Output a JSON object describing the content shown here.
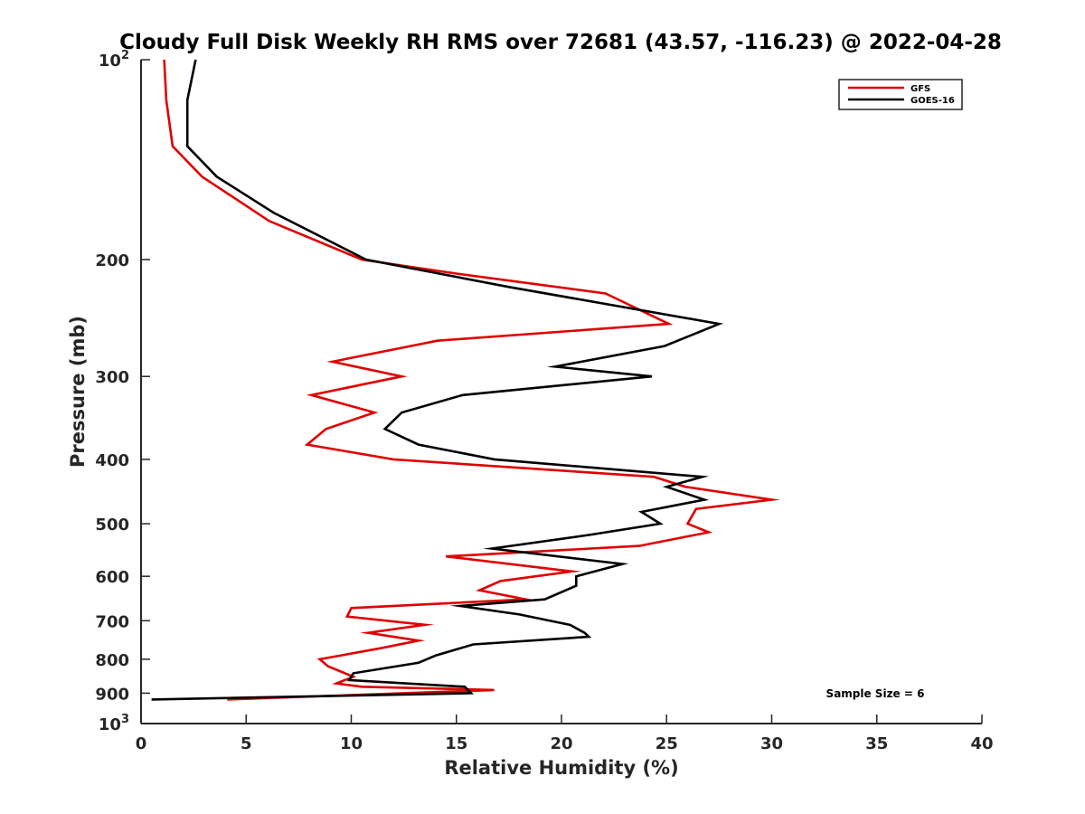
{
  "chart_data": {
    "type": "line",
    "title": "Cloudy Full Disk Weekly RH RMS over 72681 (43.57, -116.23) @ 2022-04-28",
    "xlabel": "Relative Humidity (%)",
    "ylabel": "Pressure (mb)",
    "xlim": [
      0,
      40
    ],
    "ylim": [
      100,
      1000
    ],
    "y_scale": "log",
    "y_reversed": true,
    "x_ticks": [
      "0",
      "5",
      "10",
      "15",
      "20",
      "25",
      "30",
      "35",
      "40"
    ],
    "y_ticks": [
      {
        "value": 100,
        "base": "10",
        "exp": "2"
      },
      {
        "value": 200,
        "label": "200"
      },
      {
        "value": 300,
        "label": "300"
      },
      {
        "value": 400,
        "label": "400"
      },
      {
        "value": 500,
        "label": "500"
      },
      {
        "value": 600,
        "label": "600"
      },
      {
        "value": 700,
        "label": "700"
      },
      {
        "value": 800,
        "label": "800"
      },
      {
        "value": 900,
        "label": "900"
      },
      {
        "value": 1000,
        "base": "10",
        "exp": "3"
      }
    ],
    "legend_position": "top-right",
    "annotation": "Sample Size = 6",
    "series": [
      {
        "name": "GFS",
        "color": "#e00000",
        "points": [
          [
            1.1,
            100
          ],
          [
            1.2,
            115
          ],
          [
            1.5,
            135
          ],
          [
            2.9,
            150
          ],
          [
            6.1,
            175
          ],
          [
            10.5,
            200
          ],
          [
            15,
            210
          ],
          [
            22.1,
            225
          ],
          [
            25.1,
            250
          ],
          [
            14.1,
            265
          ],
          [
            9.1,
            285
          ],
          [
            12.4,
            300
          ],
          [
            8.1,
            320
          ],
          [
            11.1,
            340
          ],
          [
            8.8,
            360
          ],
          [
            7.9,
            380
          ],
          [
            12.0,
            400
          ],
          [
            24.4,
            425
          ],
          [
            25.9,
            440
          ],
          [
            30.0,
            460
          ],
          [
            26.4,
            475
          ],
          [
            26.0,
            500
          ],
          [
            27.0,
            515
          ],
          [
            23.7,
            540
          ],
          [
            14.5,
            560
          ],
          [
            20.5,
            590
          ],
          [
            17.1,
            610
          ],
          [
            16.1,
            630
          ],
          [
            18.3,
            650
          ],
          [
            10.0,
            670
          ],
          [
            9.8,
            690
          ],
          [
            13.5,
            710
          ],
          [
            10.8,
            730
          ],
          [
            13.2,
            750
          ],
          [
            11.4,
            770
          ],
          [
            8.5,
            800
          ],
          [
            8.9,
            820
          ],
          [
            10.1,
            850
          ],
          [
            9.3,
            870
          ],
          [
            10.5,
            880
          ],
          [
            16.8,
            890
          ],
          [
            4.1,
            920
          ]
        ]
      },
      {
        "name": "GOES-16",
        "color": "#000000",
        "points": [
          [
            2.6,
            100
          ],
          [
            2.2,
            115
          ],
          [
            2.2,
            135
          ],
          [
            3.6,
            150
          ],
          [
            6.3,
            170
          ],
          [
            10.7,
            200
          ],
          [
            17.5,
            220
          ],
          [
            27.5,
            250
          ],
          [
            24.9,
            270
          ],
          [
            19.7,
            290
          ],
          [
            24.3,
            300
          ],
          [
            15.3,
            320
          ],
          [
            12.4,
            340
          ],
          [
            11.6,
            360
          ],
          [
            13.2,
            380
          ],
          [
            16.8,
            400
          ],
          [
            26.7,
            425
          ],
          [
            25.0,
            440
          ],
          [
            26.8,
            460
          ],
          [
            23.8,
            480
          ],
          [
            24.7,
            500
          ],
          [
            21.3,
            520
          ],
          [
            16.7,
            545
          ],
          [
            22.9,
            575
          ],
          [
            20.7,
            600
          ],
          [
            20.7,
            620
          ],
          [
            19.2,
            650
          ],
          [
            15.2,
            665
          ],
          [
            18.0,
            685
          ],
          [
            20.4,
            710
          ],
          [
            21.1,
            730
          ],
          [
            21.3,
            740
          ],
          [
            15.8,
            760
          ],
          [
            14.0,
            790
          ],
          [
            13.2,
            810
          ],
          [
            10.1,
            840
          ],
          [
            9.9,
            860
          ],
          [
            15.4,
            880
          ],
          [
            15.7,
            900
          ],
          [
            0.5,
            920
          ]
        ]
      }
    ]
  }
}
